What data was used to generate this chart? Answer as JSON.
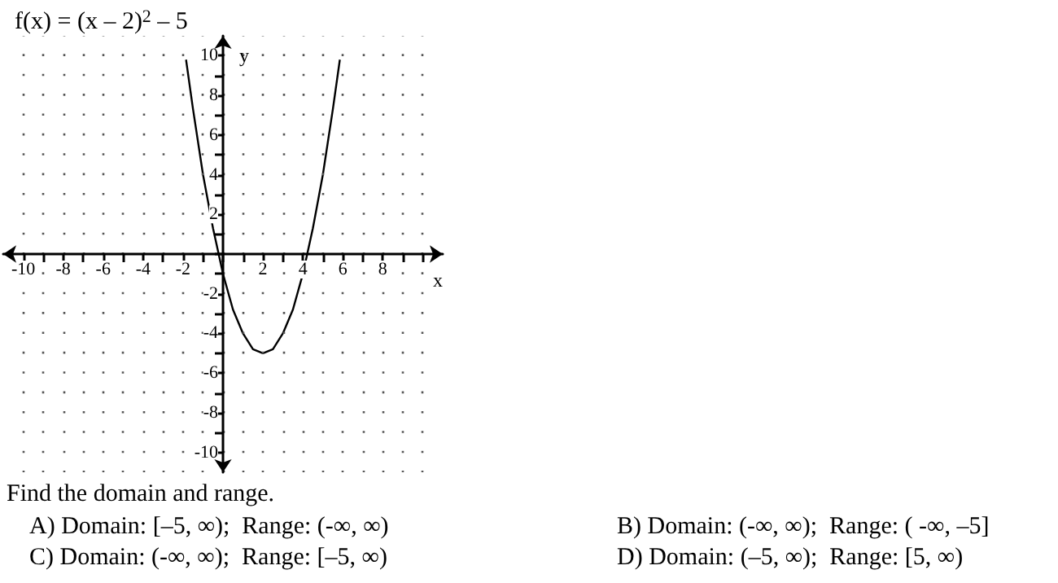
{
  "chart_data": {
    "type": "line",
    "title": "f(x) = (x – 2)$^{2}$ – 5",
    "xlabel": "x",
    "ylabel": "y",
    "x": [
      -1.85,
      -1.5,
      -1,
      -0.5,
      0,
      0.5,
      1,
      1.5,
      2,
      2.5,
      3,
      3.5,
      4,
      4.5,
      5,
      5.5,
      5.85
    ],
    "series": [
      {
        "color": "#000000",
        "values": [
          9.8,
          7.3,
          4,
          1.3,
          -1,
          -2.8,
          -4,
          -4.8,
          -5,
          -4.8,
          -4,
          -2.8,
          -1,
          1.3,
          4,
          7.3,
          9.8
        ]
      }
    ],
    "xlim": [
      -11,
      11
    ],
    "ylim": [
      -11,
      11
    ],
    "xticks": [
      -10,
      {
        "value": -9,
        "label": null
      },
      -8,
      {
        "value": -7,
        "label": null
      },
      -6,
      {
        "value": -5,
        "label": null
      },
      -4,
      {
        "value": -3,
        "label": null
      },
      -2,
      {
        "value": -1,
        "label": null
      },
      {
        "value": 0,
        "label": null
      },
      {
        "value": 1,
        "label": null
      },
      2,
      {
        "value": 3,
        "label": null
      },
      4,
      {
        "value": 5,
        "label": null
      },
      6,
      {
        "value": 7,
        "label": null
      },
      8,
      {
        "value": 9,
        "label": null
      },
      {
        "value": 10,
        "label": null
      }
    ],
    "yticks": [
      -10,
      {
        "value": -9,
        "label": null
      },
      -8,
      {
        "value": -7,
        "label": null
      },
      -6,
      {
        "value": -5,
        "label": null
      },
      -4,
      {
        "value": -3,
        "label": null
      },
      -2,
      {
        "value": -1,
        "label": null
      },
      {
        "value": 0,
        "label": null
      },
      {
        "value": 1,
        "label": null
      },
      2,
      {
        "value": 3,
        "label": null
      },
      4,
      {
        "value": 5,
        "label": null
      },
      6,
      {
        "value": 7,
        "label": null
      },
      8,
      {
        "value": 9,
        "label": null
      },
      10
    ],
    "grid": true,
    "marker": "none",
    "line_style": "solid",
    "annotations": [
      "Find the domain and range.",
      "A) Domain: [–5, ∞);  Range: (-∞, ∞)",
      "B) Domain: (-∞, ∞);  Range: ( -∞, –5]",
      "C) Domain: (-∞, ∞);  Range: [–5, ∞)",
      "D) Domain: (–5, ∞);  Range: [5, ∞)"
    ]
  }
}
